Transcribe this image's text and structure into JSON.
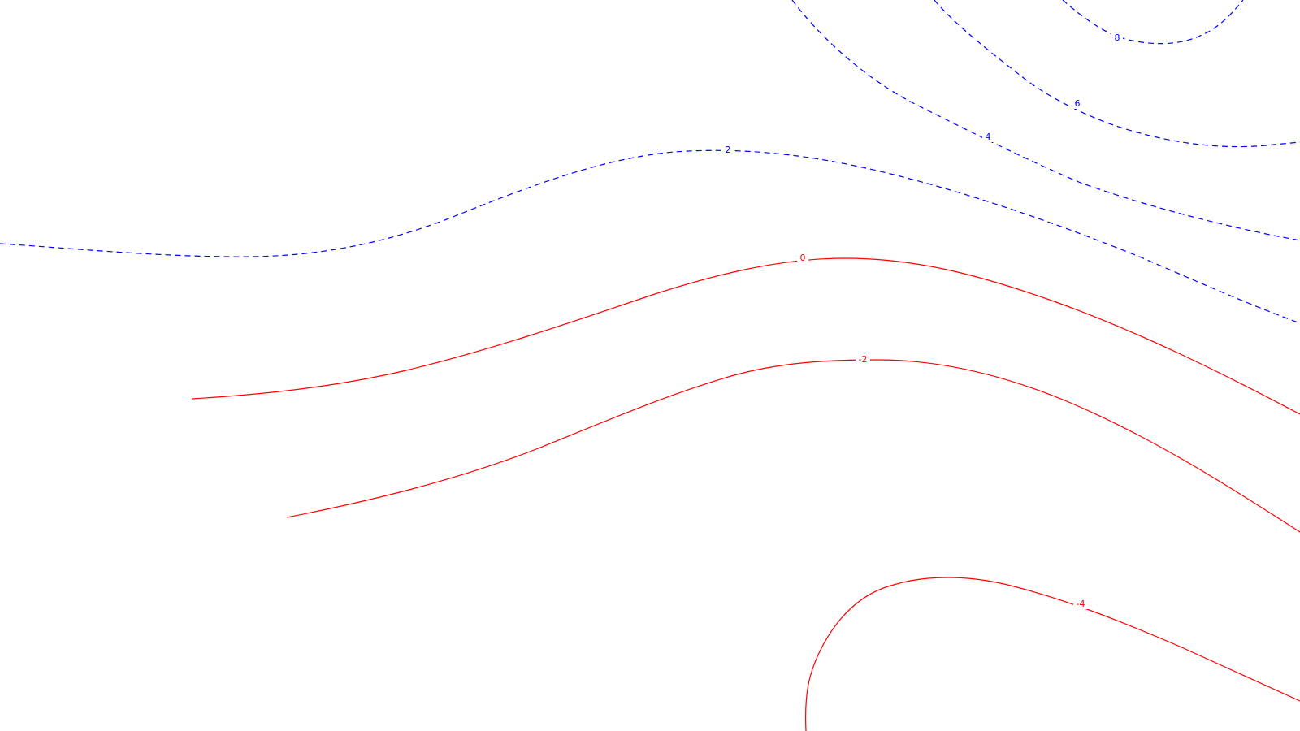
{
  "map": {
    "colors": {
      "positive": "#0000ff",
      "negative": "#ff0000",
      "background": "#ffffff"
    },
    "contours": [
      {
        "id": "c8",
        "level": 8,
        "label": "8",
        "sign": "positive",
        "style": "dashed"
      },
      {
        "id": "c6",
        "level": 6,
        "label": "6",
        "sign": "positive",
        "style": "dashed"
      },
      {
        "id": "c4",
        "level": 4,
        "label": "4",
        "sign": "positive",
        "style": "dashed"
      },
      {
        "id": "c2",
        "level": 2,
        "label": "2",
        "sign": "positive",
        "style": "dashed"
      },
      {
        "id": "c0",
        "level": 0,
        "label": "0",
        "sign": "negative",
        "style": "solid"
      },
      {
        "id": "cm2",
        "level": -2,
        "label": "-2",
        "sign": "negative",
        "style": "solid"
      },
      {
        "id": "cm4",
        "level": -4,
        "label": "-4",
        "sign": "negative",
        "style": "solid"
      }
    ]
  }
}
